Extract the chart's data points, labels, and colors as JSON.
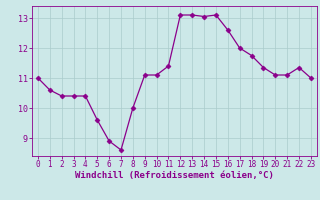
{
  "x": [
    0,
    1,
    2,
    3,
    4,
    5,
    6,
    7,
    8,
    9,
    10,
    11,
    12,
    13,
    14,
    15,
    16,
    17,
    18,
    19,
    20,
    21,
    22,
    23
  ],
  "y": [
    11.0,
    10.6,
    10.4,
    10.4,
    10.4,
    9.6,
    8.9,
    8.6,
    10.0,
    11.1,
    11.1,
    11.4,
    13.1,
    13.1,
    13.05,
    13.1,
    12.6,
    12.0,
    11.75,
    11.35,
    11.1,
    11.1,
    11.35,
    11.0
  ],
  "line_color": "#8B008B",
  "marker": "D",
  "marker_size": 2.5,
  "bg_color": "#cce8e8",
  "grid_color": "#aacccc",
  "xlabel": "Windchill (Refroidissement éolien,°C)",
  "xlim": [
    -0.5,
    23.5
  ],
  "ylim": [
    8.4,
    13.4
  ],
  "yticks": [
    9,
    10,
    11,
    12,
    13
  ],
  "xticks": [
    0,
    1,
    2,
    3,
    4,
    5,
    6,
    7,
    8,
    9,
    10,
    11,
    12,
    13,
    14,
    15,
    16,
    17,
    18,
    19,
    20,
    21,
    22,
    23
  ],
  "xlabel_color": "#8B008B",
  "tick_color": "#8B008B",
  "spine_color": "#8B008B",
  "tick_fontsize": 5.5,
  "xlabel_fontsize": 6.5
}
